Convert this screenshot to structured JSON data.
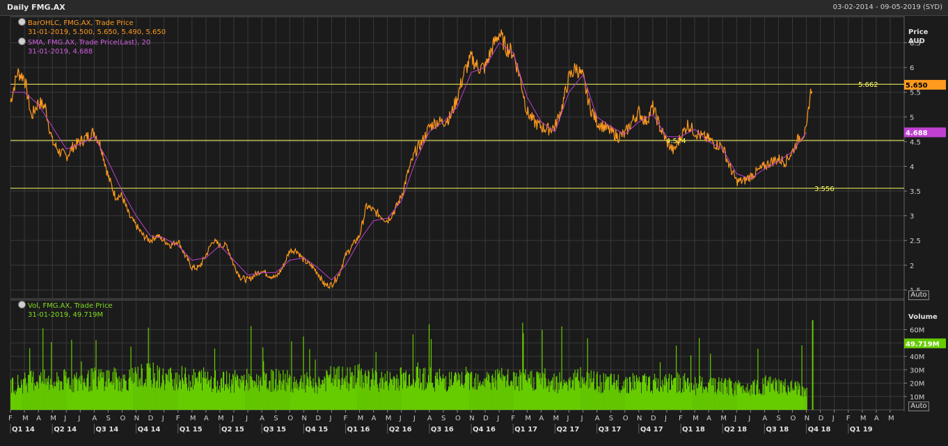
{
  "window": {
    "title": "Daily FMG.AX",
    "date_range": "03-02-2014 - 09-05-2019 (SYD)"
  },
  "legend": {
    "bar_title": "BarOHLC, FMG.AX, Trade Price",
    "bar_values": "31-01-2019, 5.500, 5.650, 5.490, 5.650",
    "sma_title": "SMA, FMG.AX, Trade Price(Last), 20",
    "sma_values": "31-01-2019, 4.688",
    "vol_title": "Vol, FMG.AX, Trade Price",
    "vol_values": "31-01-2019, 49.719M"
  },
  "price_axis": {
    "label1": "Price",
    "label2": "AUD",
    "auto": "Auto"
  },
  "volume_axis": {
    "label": "Volume",
    "auto": "Auto"
  },
  "colors": {
    "background": "#1b1b1b",
    "price_line": "#ff9a1f",
    "sma_line": "#c040d0",
    "volume_bars": "#66cc00",
    "hlines": "#ffff66",
    "grid": "#3a3a3a"
  },
  "chart_data": [
    {
      "type": "line",
      "name": "price",
      "y_ticks": [
        "1.5",
        "2",
        "2.5",
        "3",
        "3.5",
        "4",
        "4.5",
        "5",
        "5.5",
        "6",
        "6.5"
      ],
      "ylim": [
        1.35,
        7.0
      ],
      "x_range": [
        0,
        64
      ],
      "grid": true,
      "series": [
        {
          "name": "BarOHLC",
          "color": "#ff9a1f",
          "points": [
            [
              0,
              5.3
            ],
            [
              0.5,
              5.9
            ],
            [
              1,
              5.8
            ],
            [
              1.5,
              5.0
            ],
            [
              2,
              5.3
            ],
            [
              2.5,
              5.2
            ],
            [
              3,
              4.5
            ],
            [
              3.5,
              4.3
            ],
            [
              4,
              4.2
            ],
            [
              4.5,
              4.4
            ],
            [
              5,
              4.5
            ],
            [
              5.5,
              4.6
            ],
            [
              6,
              4.7
            ],
            [
              6.5,
              4.4
            ],
            [
              7,
              3.8
            ],
            [
              7.5,
              3.4
            ],
            [
              8,
              3.4
            ],
            [
              8.5,
              3.0
            ],
            [
              9,
              2.8
            ],
            [
              9.5,
              2.6
            ],
            [
              10,
              2.5
            ],
            [
              10.5,
              2.6
            ],
            [
              11,
              2.5
            ],
            [
              11.5,
              2.4
            ],
            [
              12,
              2.5
            ],
            [
              12.5,
              2.2
            ],
            [
              13,
              1.95
            ],
            [
              13.5,
              1.95
            ],
            [
              14,
              2.2
            ],
            [
              14.5,
              2.5
            ],
            [
              15,
              2.4
            ],
            [
              15.5,
              2.4
            ],
            [
              16,
              2.0
            ],
            [
              16.5,
              1.75
            ],
            [
              17,
              1.7
            ],
            [
              17.5,
              1.8
            ],
            [
              18,
              1.9
            ],
            [
              18.5,
              1.8
            ],
            [
              19,
              1.75
            ],
            [
              19.5,
              1.95
            ],
            [
              20,
              2.3
            ],
            [
              20.5,
              2.3
            ],
            [
              21,
              2.1
            ],
            [
              21.5,
              2.0
            ],
            [
              22,
              1.85
            ],
            [
              22.5,
              1.6
            ],
            [
              23,
              1.6
            ],
            [
              23.5,
              1.8
            ],
            [
              24,
              2.2
            ],
            [
              24.5,
              2.4
            ],
            [
              25,
              2.6
            ],
            [
              25.5,
              3.2
            ],
            [
              26,
              3.1
            ],
            [
              26.5,
              3.0
            ],
            [
              27,
              2.9
            ],
            [
              27.5,
              3.1
            ],
            [
              28,
              3.4
            ],
            [
              28.5,
              3.9
            ],
            [
              29,
              4.3
            ],
            [
              29.5,
              4.5
            ],
            [
              30,
              4.8
            ],
            [
              30.5,
              4.9
            ],
            [
              31,
              4.9
            ],
            [
              31.5,
              5.0
            ],
            [
              32,
              5.4
            ],
            [
              32.5,
              5.9
            ],
            [
              33,
              6.2
            ],
            [
              33.5,
              6.0
            ],
            [
              34,
              6.0
            ],
            [
              34.5,
              6.4
            ],
            [
              35,
              6.7
            ],
            [
              35.5,
              6.4
            ],
            [
              36,
              6.3
            ],
            [
              36.5,
              5.8
            ],
            [
              37,
              5.1
            ],
            [
              37.5,
              4.9
            ],
            [
              38,
              4.8
            ],
            [
              38.5,
              4.75
            ],
            [
              39,
              4.8
            ],
            [
              39.5,
              5.2
            ],
            [
              40,
              5.8
            ],
            [
              40.5,
              6.0
            ],
            [
              41,
              5.8
            ],
            [
              41.5,
              5.2
            ],
            [
              42,
              4.9
            ],
            [
              42.5,
              4.8
            ],
            [
              43,
              4.7
            ],
            [
              43.5,
              4.6
            ],
            [
              44,
              4.65
            ],
            [
              44.5,
              4.9
            ],
            [
              45,
              5.1
            ],
            [
              45.5,
              4.9
            ],
            [
              46,
              5.2
            ],
            [
              46.5,
              4.8
            ],
            [
              47,
              4.5
            ],
            [
              47.5,
              4.3
            ],
            [
              48,
              4.6
            ],
            [
              48.5,
              4.85
            ],
            [
              49,
              4.7
            ],
            [
              49.5,
              4.6
            ],
            [
              50,
              4.55
            ],
            [
              50.5,
              4.45
            ],
            [
              51,
              4.4
            ],
            [
              51.5,
              4.0
            ],
            [
              52,
              3.7
            ],
            [
              52.5,
              3.7
            ],
            [
              53,
              3.8
            ],
            [
              53.5,
              3.9
            ],
            [
              54,
              4.0
            ],
            [
              54.5,
              4.1
            ],
            [
              55,
              4.15
            ],
            [
              55.5,
              4.1
            ],
            [
              56,
              4.3
            ],
            [
              56.5,
              4.6
            ],
            [
              57,
              4.7
            ],
            [
              57.2,
              5.3
            ],
            [
              57.4,
              5.65
            ]
          ]
        },
        {
          "name": "SMA 20",
          "color": "#c040d0",
          "points": [
            [
              0,
              5.5
            ],
            [
              1,
              5.5
            ],
            [
              2,
              5.25
            ],
            [
              3,
              4.8
            ],
            [
              4,
              4.35
            ],
            [
              5,
              4.45
            ],
            [
              6,
              4.6
            ],
            [
              7,
              4.1
            ],
            [
              8,
              3.5
            ],
            [
              9,
              3.0
            ],
            [
              10,
              2.6
            ],
            [
              11,
              2.55
            ],
            [
              12,
              2.4
            ],
            [
              13,
              2.1
            ],
            [
              14,
              2.15
            ],
            [
              15,
              2.4
            ],
            [
              16,
              2.1
            ],
            [
              17,
              1.8
            ],
            [
              18,
              1.85
            ],
            [
              19,
              1.85
            ],
            [
              20,
              2.1
            ],
            [
              21,
              2.15
            ],
            [
              22,
              1.95
            ],
            [
              23,
              1.7
            ],
            [
              24,
              2.0
            ],
            [
              25,
              2.5
            ],
            [
              26,
              2.9
            ],
            [
              27,
              2.95
            ],
            [
              28,
              3.3
            ],
            [
              29,
              4.1
            ],
            [
              30,
              4.7
            ],
            [
              31,
              4.9
            ],
            [
              32,
              5.2
            ],
            [
              33,
              5.9
            ],
            [
              34,
              6.0
            ],
            [
              35,
              6.5
            ],
            [
              36,
              6.3
            ],
            [
              37,
              5.4
            ],
            [
              38,
              4.9
            ],
            [
              39,
              4.7
            ],
            [
              40,
              5.5
            ],
            [
              41,
              5.85
            ],
            [
              42,
              5.0
            ],
            [
              43,
              4.8
            ],
            [
              44,
              4.65
            ],
            [
              45,
              4.9
            ],
            [
              46,
              5.05
            ],
            [
              47,
              4.6
            ],
            [
              48,
              4.6
            ],
            [
              49,
              4.75
            ],
            [
              50,
              4.5
            ],
            [
              51,
              4.35
            ],
            [
              52,
              3.85
            ],
            [
              53,
              3.75
            ],
            [
              54,
              3.95
            ],
            [
              55,
              4.1
            ],
            [
              56,
              4.3
            ],
            [
              57,
              4.688
            ]
          ]
        }
      ],
      "hlines": [
        {
          "value": 5.662,
          "label": "5.662"
        },
        {
          "value": 4.524,
          "label": "4.524"
        },
        {
          "value": 3.556,
          "label": "3.556"
        }
      ],
      "last_price_label": "5.650",
      "last_sma_label": "4.688",
      "x_month_labels": [
        "F",
        "M",
        "A",
        "M",
        "J",
        "J",
        "A",
        "S",
        "O",
        "N",
        "D",
        "J",
        "F",
        "M",
        "A",
        "M",
        "J",
        "J",
        "A",
        "S",
        "O",
        "N",
        "D",
        "J",
        "F",
        "M",
        "A",
        "M",
        "J",
        "J",
        "A",
        "S",
        "O",
        "N",
        "D",
        "J",
        "F",
        "M",
        "A",
        "M",
        "J",
        "J",
        "A",
        "S",
        "O",
        "N",
        "D",
        "J",
        "F",
        "M",
        "A",
        "M",
        "J",
        "J",
        "A",
        "S",
        "O",
        "N",
        "D",
        "J",
        "F",
        "M",
        "A",
        "M"
      ],
      "x_quarter_labels": [
        "Q1 14",
        "Q2 14",
        "Q3 14",
        "Q4 14",
        "Q1 15",
        "Q2 15",
        "Q3 15",
        "Q4 15",
        "Q1 16",
        "Q2 16",
        "Q3 16",
        "Q4 16",
        "Q1 17",
        "Q2 17",
        "Q3 17",
        "Q4 17",
        "Q1 18",
        "Q2 18",
        "Q3 18",
        "Q4 18",
        "Q1 19"
      ]
    },
    {
      "type": "bar",
      "name": "volume",
      "unit": "M",
      "y_ticks": [
        "10M",
        "20M",
        "30M",
        "40M",
        "50M",
        "60M"
      ],
      "ylim": [
        0,
        80
      ],
      "x_range": [
        0,
        64
      ],
      "series": [
        {
          "name": "Vol",
          "color": "#66cc00",
          "points": [
            [
              0,
              20
            ],
            [
              1,
              22
            ],
            [
              2,
              25
            ],
            [
              3,
              21
            ],
            [
              4,
              24
            ],
            [
              5,
              22
            ],
            [
              6,
              25
            ],
            [
              7,
              26
            ],
            [
              8,
              23
            ],
            [
              9,
              27
            ],
            [
              10,
              28
            ],
            [
              11,
              25
            ],
            [
              12,
              26
            ],
            [
              13,
              24
            ],
            [
              14,
              26
            ],
            [
              15,
              22
            ],
            [
              16,
              23
            ],
            [
              17,
              24
            ],
            [
              18,
              22
            ],
            [
              19,
              24
            ],
            [
              20,
              23
            ],
            [
              21,
              22
            ],
            [
              22,
              21
            ],
            [
              23,
              26
            ],
            [
              24,
              25
            ],
            [
              25,
              27
            ],
            [
              26,
              24
            ],
            [
              27,
              23
            ],
            [
              28,
              26
            ],
            [
              29,
              28
            ],
            [
              30,
              25
            ],
            [
              31,
              24
            ],
            [
              32,
              23
            ],
            [
              33,
              26
            ],
            [
              34,
              24
            ],
            [
              35,
              25
            ],
            [
              36,
              23
            ],
            [
              37,
              24
            ],
            [
              38,
              25
            ],
            [
              39,
              22
            ],
            [
              40,
              24
            ],
            [
              41,
              25
            ],
            [
              42,
              22
            ],
            [
              43,
              21
            ],
            [
              44,
              22
            ],
            [
              45,
              22
            ],
            [
              46,
              21
            ],
            [
              47,
              21
            ],
            [
              48,
              22
            ],
            [
              49,
              20
            ],
            [
              50,
              19
            ],
            [
              51,
              19
            ],
            [
              52,
              18
            ],
            [
              53,
              19
            ],
            [
              54,
              20
            ],
            [
              55,
              19
            ],
            [
              56,
              17
            ],
            [
              57,
              18
            ],
            [
              57.4,
              49.719
            ]
          ]
        }
      ],
      "last_volume_label": "49.719M"
    }
  ]
}
